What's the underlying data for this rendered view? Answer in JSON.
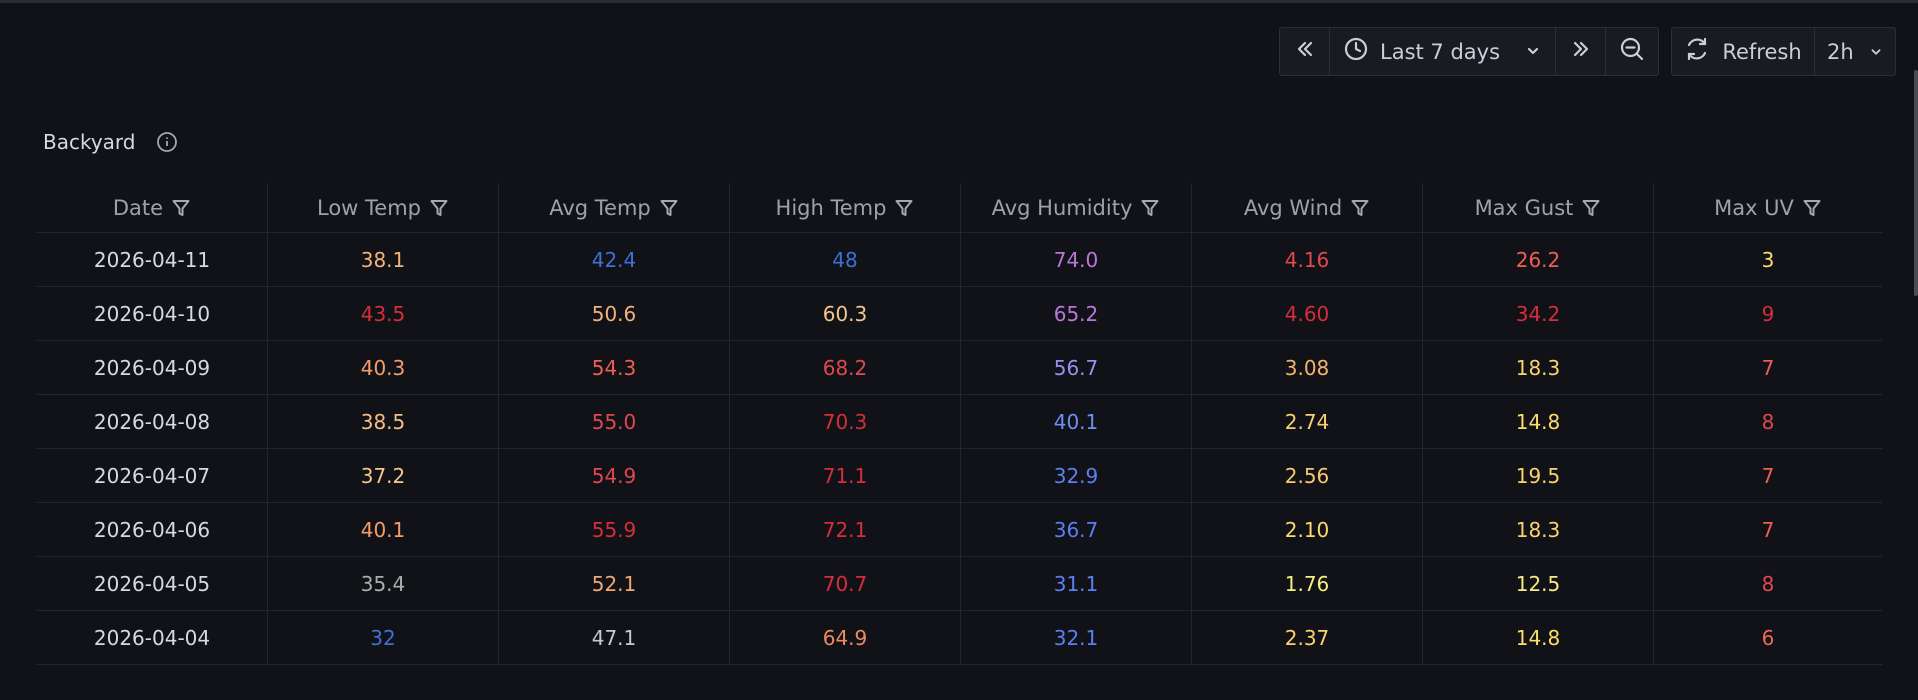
{
  "toolbar": {
    "time_range_label": "Last 7 days",
    "refresh_label": "Refresh",
    "refresh_interval": "2h"
  },
  "panel": {
    "title": "Backyard"
  },
  "table": {
    "columns": [
      "Date",
      "Low Temp",
      "Avg Temp",
      "High Temp",
      "Avg Humidity",
      "Avg Wind",
      "Max Gust",
      "Max UV"
    ],
    "rows": [
      [
        "2026-04-11",
        "38.1",
        "42.4",
        "48",
        "74.0",
        "4.16",
        "26.2",
        "3"
      ],
      [
        "2026-04-10",
        "43.5",
        "50.6",
        "60.3",
        "65.2",
        "4.60",
        "34.2",
        "9"
      ],
      [
        "2026-04-09",
        "40.3",
        "54.3",
        "68.2",
        "56.7",
        "3.08",
        "18.3",
        "7"
      ],
      [
        "2026-04-08",
        "38.5",
        "55.0",
        "70.3",
        "40.1",
        "2.74",
        "14.8",
        "8"
      ],
      [
        "2026-04-07",
        "37.2",
        "54.9",
        "71.1",
        "32.9",
        "2.56",
        "19.5",
        "7"
      ],
      [
        "2026-04-06",
        "40.1",
        "55.9",
        "72.1",
        "36.7",
        "2.10",
        "18.3",
        "7"
      ],
      [
        "2026-04-05",
        "35.4",
        "52.1",
        "70.7",
        "31.1",
        "1.76",
        "12.5",
        "8"
      ],
      [
        "2026-04-04",
        "32",
        "47.1",
        "64.9",
        "32.1",
        "2.37",
        "14.8",
        "6"
      ]
    ],
    "colors": [
      [
        "#d8d9e0",
        "#f2b37a",
        "#3d71d9",
        "#3d71d9",
        "#b877d9",
        "#e0474f",
        "#ee5f52",
        "#fade6b"
      ],
      [
        "#d8d9e0",
        "#d62d3a",
        "#f2b37a",
        "#f4c58c",
        "#b877d9",
        "#d62d3a",
        "#d62d3a",
        "#d62d3a"
      ],
      [
        "#d8d9e0",
        "#f39c6b",
        "#ee5f52",
        "#e0474f",
        "#9b8ef0",
        "#f4b36b",
        "#fbd36e",
        "#ee5f52"
      ],
      [
        "#d8d9e0",
        "#f5be82",
        "#e0474f",
        "#d62d3a",
        "#6e8ff5",
        "#fbcf6e",
        "#fade6b",
        "#e0474f"
      ],
      [
        "#d8d9e0",
        "#f4c58c",
        "#e0474f",
        "#d62d3a",
        "#5b7ff2",
        "#f8c876",
        "#fbd36e",
        "#ee5f52"
      ],
      [
        "#d8d9e0",
        "#f39c6b",
        "#d62d3a",
        "#d62d3a",
        "#5b7ff2",
        "#fbd96e",
        "#fbd36e",
        "#ee5f52"
      ],
      [
        "#d8d9e0",
        "#a7b0aa",
        "#f4a86e",
        "#d62d3a",
        "#5b7ff2",
        "#f6ee7d",
        "#f8e985",
        "#e0474f"
      ],
      [
        "#d8d9e0",
        "#3d71d9",
        "#c8c9cf",
        "#ee8a5f",
        "#5b7ff2",
        "#fbd36e",
        "#fade6b",
        "#ee6a52"
      ]
    ]
  }
}
